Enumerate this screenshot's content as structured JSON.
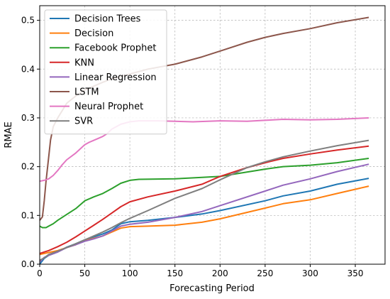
{
  "chart_data": {
    "type": "line",
    "title": "",
    "xlabel": "Forecasting Period",
    "ylabel": "RMAE",
    "xlim": [
      0,
      383
    ],
    "ylim": [
      0,
      0.53
    ],
    "xticks": [
      0,
      50,
      100,
      150,
      200,
      250,
      300,
      350
    ],
    "yticks": [
      0.0,
      0.1,
      0.2,
      0.3,
      0.4,
      0.5
    ],
    "xtick_labels": [
      "0",
      "50",
      "100",
      "150",
      "200",
      "250",
      "300",
      "350"
    ],
    "ytick_labels": [
      "0.0",
      "0.1",
      "0.2",
      "0.3",
      "0.4",
      "0.5"
    ],
    "grid": true,
    "legend_position": "top-left",
    "series": [
      {
        "name": "Decision Trees",
        "color": "#1f77b4",
        "x": [
          0,
          5,
          10,
          20,
          30,
          40,
          50,
          60,
          70,
          80,
          90,
          100,
          120,
          150,
          180,
          200,
          250,
          270,
          300,
          330,
          365
        ],
        "y": [
          0.0,
          0.012,
          0.018,
          0.025,
          0.035,
          0.042,
          0.05,
          0.056,
          0.062,
          0.07,
          0.083,
          0.087,
          0.09,
          0.096,
          0.103,
          0.11,
          0.13,
          0.14,
          0.15,
          0.164,
          0.176
        ]
      },
      {
        "name": "Decision",
        "color": "#ff7f0e",
        "x": [
          0,
          5,
          10,
          20,
          30,
          40,
          50,
          60,
          70,
          80,
          90,
          100,
          120,
          150,
          180,
          200,
          250,
          270,
          300,
          330,
          365
        ],
        "y": [
          0.02,
          0.022,
          0.024,
          0.028,
          0.034,
          0.04,
          0.048,
          0.053,
          0.058,
          0.066,
          0.074,
          0.077,
          0.078,
          0.08,
          0.086,
          0.093,
          0.115,
          0.124,
          0.132,
          0.145,
          0.16
        ]
      },
      {
        "name": "Facebook Prophet",
        "color": "#2ca02c",
        "x": [
          0,
          3,
          7,
          10,
          15,
          20,
          30,
          40,
          50,
          60,
          70,
          80,
          90,
          100,
          110,
          150,
          180,
          200,
          250,
          270,
          300,
          330,
          365
        ],
        "y": [
          0.078,
          0.075,
          0.075,
          0.078,
          0.083,
          0.09,
          0.102,
          0.114,
          0.13,
          0.138,
          0.145,
          0.155,
          0.166,
          0.172,
          0.174,
          0.175,
          0.178,
          0.18,
          0.195,
          0.2,
          0.203,
          0.208,
          0.217
        ]
      },
      {
        "name": "KNN",
        "color": "#d62728",
        "x": [
          0,
          5,
          10,
          20,
          30,
          40,
          50,
          60,
          70,
          80,
          90,
          100,
          120,
          150,
          180,
          200,
          230,
          250,
          270,
          300,
          330,
          365
        ],
        "y": [
          0.022,
          0.025,
          0.028,
          0.036,
          0.045,
          0.056,
          0.068,
          0.08,
          0.092,
          0.105,
          0.118,
          0.128,
          0.138,
          0.15,
          0.164,
          0.18,
          0.198,
          0.208,
          0.217,
          0.226,
          0.234,
          0.242
        ]
      },
      {
        "name": "Linear Regression",
        "color": "#9467bd",
        "x": [
          0,
          5,
          10,
          20,
          30,
          40,
          50,
          60,
          70,
          80,
          90,
          100,
          120,
          150,
          180,
          200,
          250,
          270,
          300,
          330,
          365
        ],
        "y": [
          0.005,
          0.014,
          0.018,
          0.025,
          0.034,
          0.04,
          0.047,
          0.052,
          0.058,
          0.068,
          0.078,
          0.082,
          0.086,
          0.096,
          0.108,
          0.12,
          0.15,
          0.162,
          0.175,
          0.19,
          0.205
        ]
      },
      {
        "name": "LSTM",
        "color": "#8c564b",
        "x": [
          0,
          3,
          5,
          7,
          10,
          12,
          15,
          20,
          25,
          30,
          40,
          50,
          60,
          70,
          80,
          100,
          120,
          150,
          180,
          200,
          230,
          250,
          270,
          300,
          330,
          365
        ],
        "y": [
          0.09,
          0.097,
          0.13,
          0.17,
          0.22,
          0.255,
          0.282,
          0.3,
          0.315,
          0.33,
          0.345,
          0.357,
          0.365,
          0.373,
          0.38,
          0.39,
          0.4,
          0.41,
          0.425,
          0.437,
          0.455,
          0.465,
          0.473,
          0.483,
          0.495,
          0.506
        ]
      },
      {
        "name": "Neural Prophet",
        "color": "#e377c2",
        "x": [
          0,
          5,
          10,
          15,
          20,
          25,
          30,
          40,
          50,
          55,
          60,
          65,
          70,
          75,
          80,
          90,
          100,
          110,
          130,
          150,
          170,
          200,
          230,
          250,
          270,
          300,
          330,
          365
        ],
        "y": [
          0.17,
          0.172,
          0.175,
          0.182,
          0.192,
          0.204,
          0.214,
          0.228,
          0.245,
          0.25,
          0.254,
          0.258,
          0.262,
          0.268,
          0.277,
          0.287,
          0.292,
          0.294,
          0.294,
          0.293,
          0.292,
          0.294,
          0.293,
          0.295,
          0.297,
          0.296,
          0.297,
          0.3
        ]
      },
      {
        "name": "SVR",
        "color": "#7f7f7f",
        "x": [
          0,
          5,
          10,
          20,
          30,
          40,
          50,
          60,
          70,
          80,
          90,
          100,
          120,
          150,
          180,
          200,
          230,
          250,
          270,
          300,
          330,
          365
        ],
        "y": [
          0.008,
          0.013,
          0.02,
          0.027,
          0.034,
          0.042,
          0.05,
          0.058,
          0.066,
          0.075,
          0.085,
          0.094,
          0.11,
          0.135,
          0.155,
          0.173,
          0.198,
          0.21,
          0.22,
          0.232,
          0.243,
          0.254
        ]
      }
    ]
  }
}
